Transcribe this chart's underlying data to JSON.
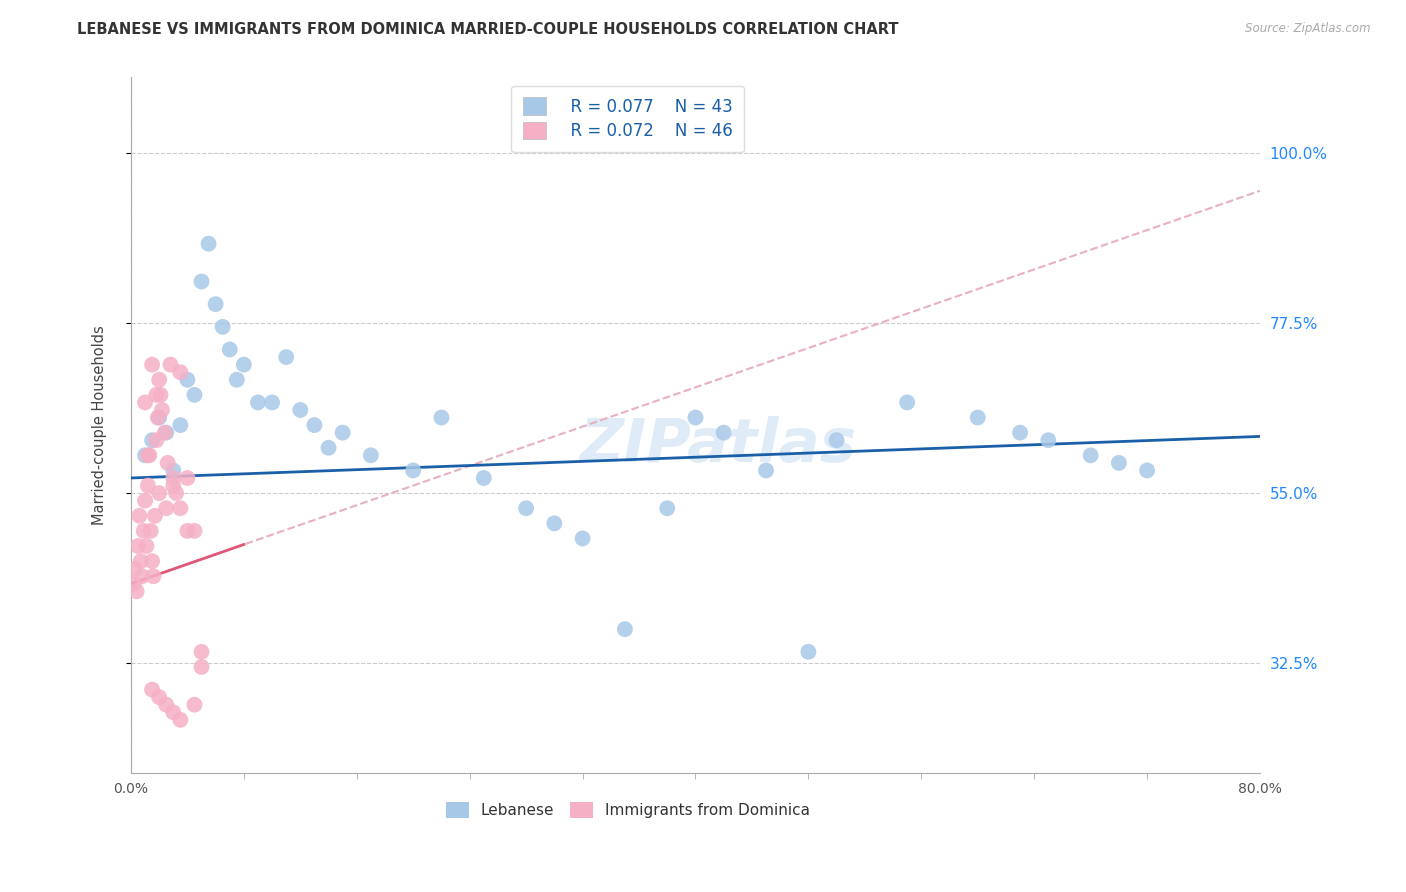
{
  "title": "LEBANESE VS IMMIGRANTS FROM DOMINICA MARRIED-COUPLE HOUSEHOLDS CORRELATION CHART",
  "source": "Source: ZipAtlas.com",
  "ylabel": "Married-couple Households",
  "ytick_vals": [
    32.5,
    55.0,
    77.5,
    100.0
  ],
  "xlim": [
    0.0,
    80.0
  ],
  "ylim": [
    18.0,
    110.0
  ],
  "legend_r1": "R = 0.077",
  "legend_n1": "N = 43",
  "legend_r2": "R = 0.072",
  "legend_n2": "N = 46",
  "blue_scatter_color": "#a8c8e8",
  "blue_line_color": "#1a5fa8",
  "pink_scatter_color": "#f5b0c5",
  "pink_solid_line_color": "#e05878",
  "pink_dash_line_color": "#e8b0c0",
  "label1": "Lebanese",
  "label2": "Immigrants from Dominica",
  "watermark": "ZIPatlas",
  "blue_x": [
    1.0,
    1.5,
    2.0,
    2.5,
    3.0,
    3.5,
    4.0,
    4.5,
    5.0,
    5.5,
    6.0,
    6.5,
    7.0,
    7.5,
    8.0,
    9.0,
    10.0,
    11.0,
    12.0,
    13.0,
    14.0,
    15.0,
    17.0,
    20.0,
    22.0,
    25.0,
    28.0,
    30.0,
    32.0,
    35.0,
    38.0,
    40.0,
    42.0,
    45.0,
    48.0,
    50.0,
    55.0,
    60.0,
    63.0,
    65.0,
    68.0,
    70.0,
    72.0
  ],
  "blue_y": [
    60.0,
    62.0,
    65.0,
    63.0,
    58.0,
    64.0,
    70.0,
    68.0,
    83.0,
    88.0,
    80.0,
    77.0,
    74.0,
    70.0,
    72.0,
    67.0,
    67.0,
    73.0,
    66.0,
    64.0,
    61.0,
    63.0,
    60.0,
    58.0,
    65.0,
    57.0,
    53.0,
    51.0,
    49.0,
    37.0,
    53.0,
    65.0,
    63.0,
    58.0,
    34.0,
    62.0,
    67.0,
    65.0,
    63.0,
    62.0,
    60.0,
    59.0,
    58.0
  ],
  "pink_x": [
    0.2,
    0.3,
    0.4,
    0.5,
    0.6,
    0.7,
    0.8,
    0.9,
    1.0,
    1.1,
    1.2,
    1.3,
    1.4,
    1.5,
    1.6,
    1.7,
    1.8,
    1.9,
    2.0,
    2.1,
    2.2,
    2.4,
    2.6,
    2.8,
    3.0,
    3.2,
    3.5,
    4.0,
    4.5,
    5.0,
    1.0,
    1.2,
    1.5,
    1.8,
    2.0,
    2.5,
    3.0,
    3.5,
    4.0,
    5.0,
    1.5,
    2.0,
    2.5,
    3.0,
    3.5,
    4.5
  ],
  "pink_y": [
    43.0,
    45.0,
    42.0,
    48.0,
    52.0,
    46.0,
    44.0,
    50.0,
    54.0,
    48.0,
    56.0,
    60.0,
    50.0,
    46.0,
    44.0,
    52.0,
    62.0,
    65.0,
    70.0,
    68.0,
    66.0,
    63.0,
    59.0,
    72.0,
    57.0,
    55.0,
    71.0,
    57.0,
    50.0,
    32.0,
    67.0,
    60.0,
    72.0,
    68.0,
    55.0,
    53.0,
    56.0,
    53.0,
    50.0,
    34.0,
    29.0,
    28.0,
    27.0,
    26.0,
    25.0,
    27.0
  ]
}
